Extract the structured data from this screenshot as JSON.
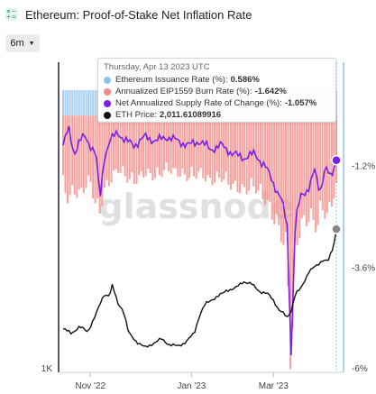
{
  "header": {
    "title": "Ethereum: Proof-of-Stake Net Inflation Rate",
    "icon": "chart-grid-icon"
  },
  "range_selector": {
    "label": "6m"
  },
  "watermark": "glassnode",
  "tooltip": {
    "date": "Thursday, Apr 13 2023 UTC",
    "rows": [
      {
        "label": "Ethereum Issuance Rate (%):",
        "value": "0.586%",
        "color": "#8fc1ef"
      },
      {
        "label": "Annualized EIP1559 Burn Rate (%):",
        "value": "-1.642%",
        "color": "#f28b87"
      },
      {
        "label": "Net Annualized Supply Rate of Change (%):",
        "value": "-1.057%",
        "color": "#7a1fe6"
      },
      {
        "label": "ETH Price:",
        "value": "2,011.61089916",
        "color": "#111111"
      }
    ]
  },
  "chart_data": {
    "type": "bar",
    "x_ticks": [
      "Nov '22",
      "Jan '23",
      "Mar '23"
    ],
    "y_left": {
      "ticks": [
        "1K"
      ]
    },
    "y_right": {
      "ticks": [
        "-1.2%",
        "-3.6%",
        "-6%"
      ],
      "range": [
        -6,
        0.6
      ]
    },
    "colors": {
      "issuance": "#8fc1ef",
      "burn": "#f28b87",
      "net": "#7a1fe6",
      "price": "#111111",
      "crosshair": "#8fc1ef"
    },
    "series": [
      {
        "name": "Ethereum Issuance Rate (%)",
        "type": "bar",
        "points": [
          [
            0,
            0.6
          ],
          [
            0.35,
            0.6
          ],
          [
            0.5,
            0.59
          ],
          [
            0.75,
            0.58
          ],
          [
            1,
            0.586
          ]
        ]
      },
      {
        "name": "Annualized EIP1559 Burn Rate (%)",
        "type": "bar",
        "points": [
          [
            0,
            -1.6
          ],
          [
            0.02,
            -1.9
          ],
          [
            0.04,
            -1.7
          ],
          [
            0.06,
            -1.8
          ],
          [
            0.08,
            -1.6
          ],
          [
            0.1,
            -1.5
          ],
          [
            0.13,
            -2.3
          ],
          [
            0.15,
            -1.7
          ],
          [
            0.17,
            -1.5
          ],
          [
            0.2,
            -1.2
          ],
          [
            0.23,
            -1.4
          ],
          [
            0.26,
            -1.5
          ],
          [
            0.3,
            -1.3
          ],
          [
            0.34,
            -1.4
          ],
          [
            0.38,
            -1.2
          ],
          [
            0.42,
            -1.3
          ],
          [
            0.46,
            -1.4
          ],
          [
            0.5,
            -1.3
          ],
          [
            0.54,
            -1.5
          ],
          [
            0.58,
            -1.4
          ],
          [
            0.62,
            -1.6
          ],
          [
            0.66,
            -1.7
          ],
          [
            0.7,
            -1.6
          ],
          [
            0.74,
            -1.9
          ],
          [
            0.77,
            -2.3
          ],
          [
            0.8,
            -2.7
          ],
          [
            0.82,
            -3.2
          ],
          [
            0.835,
            -5.9
          ],
          [
            0.85,
            -3.0
          ],
          [
            0.87,
            -2.5
          ],
          [
            0.9,
            -2.3
          ],
          [
            0.93,
            -2.5
          ],
          [
            0.95,
            -2.1
          ],
          [
            0.97,
            -2.3
          ],
          [
            0.99,
            -1.8
          ],
          [
            1,
            -1.642
          ]
        ]
      },
      {
        "name": "Net Annualized Supply Rate of Change (%)",
        "type": "line",
        "points": [
          [
            0,
            -0.7
          ],
          [
            0.02,
            -0.3
          ],
          [
            0.04,
            -0.9
          ],
          [
            0.06,
            -0.6
          ],
          [
            0.08,
            -0.5
          ],
          [
            0.1,
            -0.7
          ],
          [
            0.12,
            -0.9
          ],
          [
            0.135,
            -2.0
          ],
          [
            0.15,
            -1.0
          ],
          [
            0.17,
            -0.6
          ],
          [
            0.2,
            -0.4
          ],
          [
            0.23,
            -0.6
          ],
          [
            0.26,
            -0.7
          ],
          [
            0.3,
            -0.5
          ],
          [
            0.34,
            -0.6
          ],
          [
            0.38,
            -0.5
          ],
          [
            0.42,
            -0.6
          ],
          [
            0.46,
            -0.7
          ],
          [
            0.5,
            -0.6
          ],
          [
            0.54,
            -0.8
          ],
          [
            0.58,
            -0.7
          ],
          [
            0.62,
            -0.9
          ],
          [
            0.66,
            -1.0
          ],
          [
            0.7,
            -0.9
          ],
          [
            0.74,
            -1.2
          ],
          [
            0.77,
            -1.6
          ],
          [
            0.8,
            -2.0
          ],
          [
            0.82,
            -2.6
          ],
          [
            0.835,
            -5.7
          ],
          [
            0.85,
            -2.5
          ],
          [
            0.87,
            -1.9
          ],
          [
            0.9,
            -1.7
          ],
          [
            0.92,
            -1.3
          ],
          [
            0.94,
            -1.8
          ],
          [
            0.96,
            -1.2
          ],
          [
            0.98,
            -1.5
          ],
          [
            1,
            -1.057
          ]
        ]
      },
      {
        "name": "ETH Price",
        "type": "line",
        "points": [
          [
            0,
            1320
          ],
          [
            0.03,
            1290
          ],
          [
            0.06,
            1335
          ],
          [
            0.09,
            1300
          ],
          [
            0.12,
            1420
          ],
          [
            0.15,
            1560
          ],
          [
            0.17,
            1550
          ],
          [
            0.18,
            1620
          ],
          [
            0.2,
            1500
          ],
          [
            0.22,
            1450
          ],
          [
            0.24,
            1290
          ],
          [
            0.27,
            1230
          ],
          [
            0.3,
            1190
          ],
          [
            0.33,
            1220
          ],
          [
            0.36,
            1250
          ],
          [
            0.39,
            1210
          ],
          [
            0.42,
            1200
          ],
          [
            0.45,
            1230
          ],
          [
            0.48,
            1290
          ],
          [
            0.5,
            1420
          ],
          [
            0.52,
            1490
          ],
          [
            0.55,
            1530
          ],
          [
            0.58,
            1560
          ],
          [
            0.6,
            1590
          ],
          [
            0.63,
            1600
          ],
          [
            0.66,
            1650
          ],
          [
            0.69,
            1630
          ],
          [
            0.72,
            1580
          ],
          [
            0.75,
            1560
          ],
          [
            0.77,
            1520
          ],
          [
            0.79,
            1450
          ],
          [
            0.81,
            1420
          ],
          [
            0.82,
            1400
          ],
          [
            0.835,
            1450
          ],
          [
            0.85,
            1560
          ],
          [
            0.87,
            1600
          ],
          [
            0.9,
            1720
          ],
          [
            0.93,
            1760
          ],
          [
            0.95,
            1800
          ],
          [
            0.97,
            1790
          ],
          [
            0.99,
            1890
          ],
          [
            1,
            2011.61
          ]
        ]
      }
    ],
    "grid": false,
    "legend": "none"
  }
}
